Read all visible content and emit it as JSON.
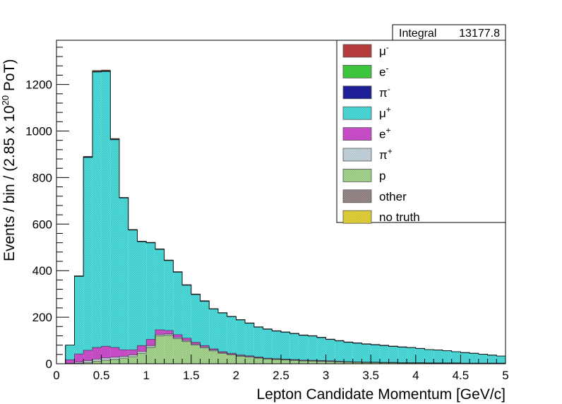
{
  "chart_data": {
    "type": "histogram-stacked",
    "xlabel": "Lepton Candidate Momentum [GeV/c]",
    "ylabel": {
      "prefix": "Events / bin / (2.85 x 10",
      "exponent": "20",
      "suffix": " PoT)"
    },
    "xlim": [
      0,
      5
    ],
    "ylim": [
      0,
      1390
    ],
    "x_ticks": [
      0,
      0.5,
      1,
      1.5,
      2,
      2.5,
      3,
      3.5,
      4,
      4.5,
      5
    ],
    "x_tick_labels": [
      "0",
      "0.5",
      "1",
      "1.5",
      "2",
      "2.5",
      "3",
      "3.5",
      "4",
      "4.5",
      "5"
    ],
    "y_ticks": [
      0,
      200,
      400,
      600,
      800,
      1000,
      1200
    ],
    "y_tick_labels": [
      "0",
      "200",
      "400",
      "600",
      "800",
      "1000",
      "1200"
    ],
    "bin_edges_start": 0,
    "bin_width": 0.1,
    "series": [
      {
        "name": "no truth",
        "label": "no truth",
        "sup": "",
        "color": "#e6d43a",
        "values": [
          0,
          0,
          0,
          0,
          0,
          0,
          0,
          0,
          0,
          0,
          0,
          0,
          0,
          0,
          0,
          0,
          0,
          0,
          0,
          0,
          0,
          0,
          0,
          0,
          0,
          0,
          0,
          0,
          0,
          0,
          0,
          0,
          0,
          0,
          0,
          0,
          0,
          0,
          0,
          0,
          0,
          0,
          0,
          0,
          0,
          0,
          0,
          0,
          0,
          0
        ]
      },
      {
        "name": "other",
        "label": "other",
        "sup": "",
        "color": "#9a8a8a",
        "values": [
          0,
          0,
          0,
          0,
          0,
          0,
          0,
          0,
          0,
          0,
          0,
          0,
          0,
          0,
          0,
          0,
          0,
          0,
          0,
          0,
          0,
          0,
          0,
          0,
          0,
          0,
          0,
          0,
          0,
          0,
          0,
          0,
          0,
          0,
          0,
          0,
          0,
          0,
          0,
          0,
          0,
          0,
          0,
          0,
          0,
          0,
          0,
          0,
          0,
          0
        ]
      },
      {
        "name": "p",
        "label": "p",
        "sup": "",
        "color": "#a8d890",
        "values": [
          0,
          0,
          2,
          5,
          10,
          15,
          18,
          24,
          30,
          45,
          70,
          120,
          122,
          108,
          95,
          80,
          68,
          55,
          45,
          38,
          32,
          28,
          24,
          20,
          18,
          16,
          14,
          12,
          11,
          10,
          9,
          8,
          7,
          6,
          5,
          5,
          4,
          4,
          3,
          3,
          3,
          2,
          2,
          2,
          2,
          1,
          1,
          1,
          1,
          1
        ]
      },
      {
        "name": "pi+",
        "label": "π",
        "sup": "+",
        "color": "#c8d8e0",
        "values": [
          0,
          2,
          5,
          8,
          10,
          10,
          10,
          8,
          8,
          8,
          8,
          6,
          6,
          5,
          5,
          4,
          4,
          4,
          3,
          3,
          3,
          3,
          2,
          2,
          2,
          2,
          2,
          2,
          2,
          2,
          2,
          1,
          1,
          1,
          1,
          1,
          1,
          1,
          1,
          1,
          1,
          1,
          1,
          1,
          1,
          1,
          1,
          1,
          1,
          1
        ]
      },
      {
        "name": "e+",
        "label": "e",
        "sup": "+",
        "color": "#d050d0",
        "values": [
          0,
          15,
          35,
          45,
          50,
          50,
          42,
          28,
          22,
          25,
          27,
          20,
          15,
          12,
          10,
          8,
          6,
          5,
          4,
          4,
          3,
          3,
          3,
          2,
          2,
          2,
          2,
          2,
          2,
          2,
          2,
          2,
          1,
          1,
          1,
          1,
          1,
          1,
          1,
          1,
          1,
          1,
          1,
          1,
          1,
          1,
          1,
          1,
          1,
          1
        ]
      },
      {
        "name": "mu+",
        "label": "μ",
        "sup": "+",
        "color": "#4ddede",
        "values": [
          0,
          63,
          333,
          828,
          1183,
          1180,
          892,
          652,
          514,
          446,
          414,
          345,
          300,
          268,
          227,
          205,
          190,
          171,
          166,
          157,
          150,
          140,
          128,
          124,
          118,
          115,
          111,
          106,
          104,
          98,
          91,
          87,
          83,
          80,
          77,
          74,
          72,
          68,
          66,
          64,
          60,
          57,
          55,
          52,
          48,
          45,
          42,
          38,
          34,
          30
        ]
      },
      {
        "name": "pi-",
        "label": "π",
        "sup": "-",
        "color": "#2020a0",
        "values": [
          0,
          0,
          1,
          2,
          2,
          2,
          2,
          1,
          1,
          1,
          1,
          1,
          1,
          1,
          1,
          1,
          1,
          1,
          1,
          1,
          1,
          1,
          1,
          1,
          1,
          1,
          1,
          1,
          1,
          1,
          1,
          1,
          1,
          1,
          1,
          1,
          1,
          1,
          1,
          1,
          1,
          0,
          0,
          0,
          0,
          0,
          0,
          0,
          0,
          0
        ]
      },
      {
        "name": "e-",
        "label": "e",
        "sup": "-",
        "color": "#40d040",
        "values": [
          0,
          0,
          1,
          1,
          2,
          2,
          2,
          1,
          1,
          1,
          1,
          1,
          1,
          1,
          1,
          1,
          1,
          0,
          0,
          0,
          0,
          0,
          0,
          0,
          0,
          0,
          0,
          0,
          0,
          0,
          0,
          0,
          0,
          0,
          0,
          0,
          0,
          0,
          0,
          0,
          0,
          0,
          0,
          0,
          0,
          0,
          0,
          0,
          0,
          0
        ]
      },
      {
        "name": "mu-",
        "label": "μ",
        "sup": "-",
        "color": "#c04040",
        "values": [
          0,
          0,
          1,
          2,
          3,
          3,
          2,
          1,
          1,
          1,
          1,
          1,
          1,
          1,
          1,
          1,
          1,
          1,
          1,
          1,
          1,
          1,
          1,
          1,
          1,
          1,
          1,
          1,
          1,
          1,
          1,
          1,
          1,
          1,
          1,
          1,
          1,
          1,
          1,
          0,
          0,
          0,
          0,
          0,
          0,
          0,
          0,
          0,
          0,
          0
        ]
      }
    ],
    "legend_order": [
      "mu-",
      "e-",
      "pi-",
      "mu+",
      "e+",
      "pi+",
      "p",
      "other",
      "no truth"
    ],
    "legend_placement": "top-right",
    "stats": {
      "label": "Integral",
      "value": "13177.8"
    },
    "grid": false
  }
}
